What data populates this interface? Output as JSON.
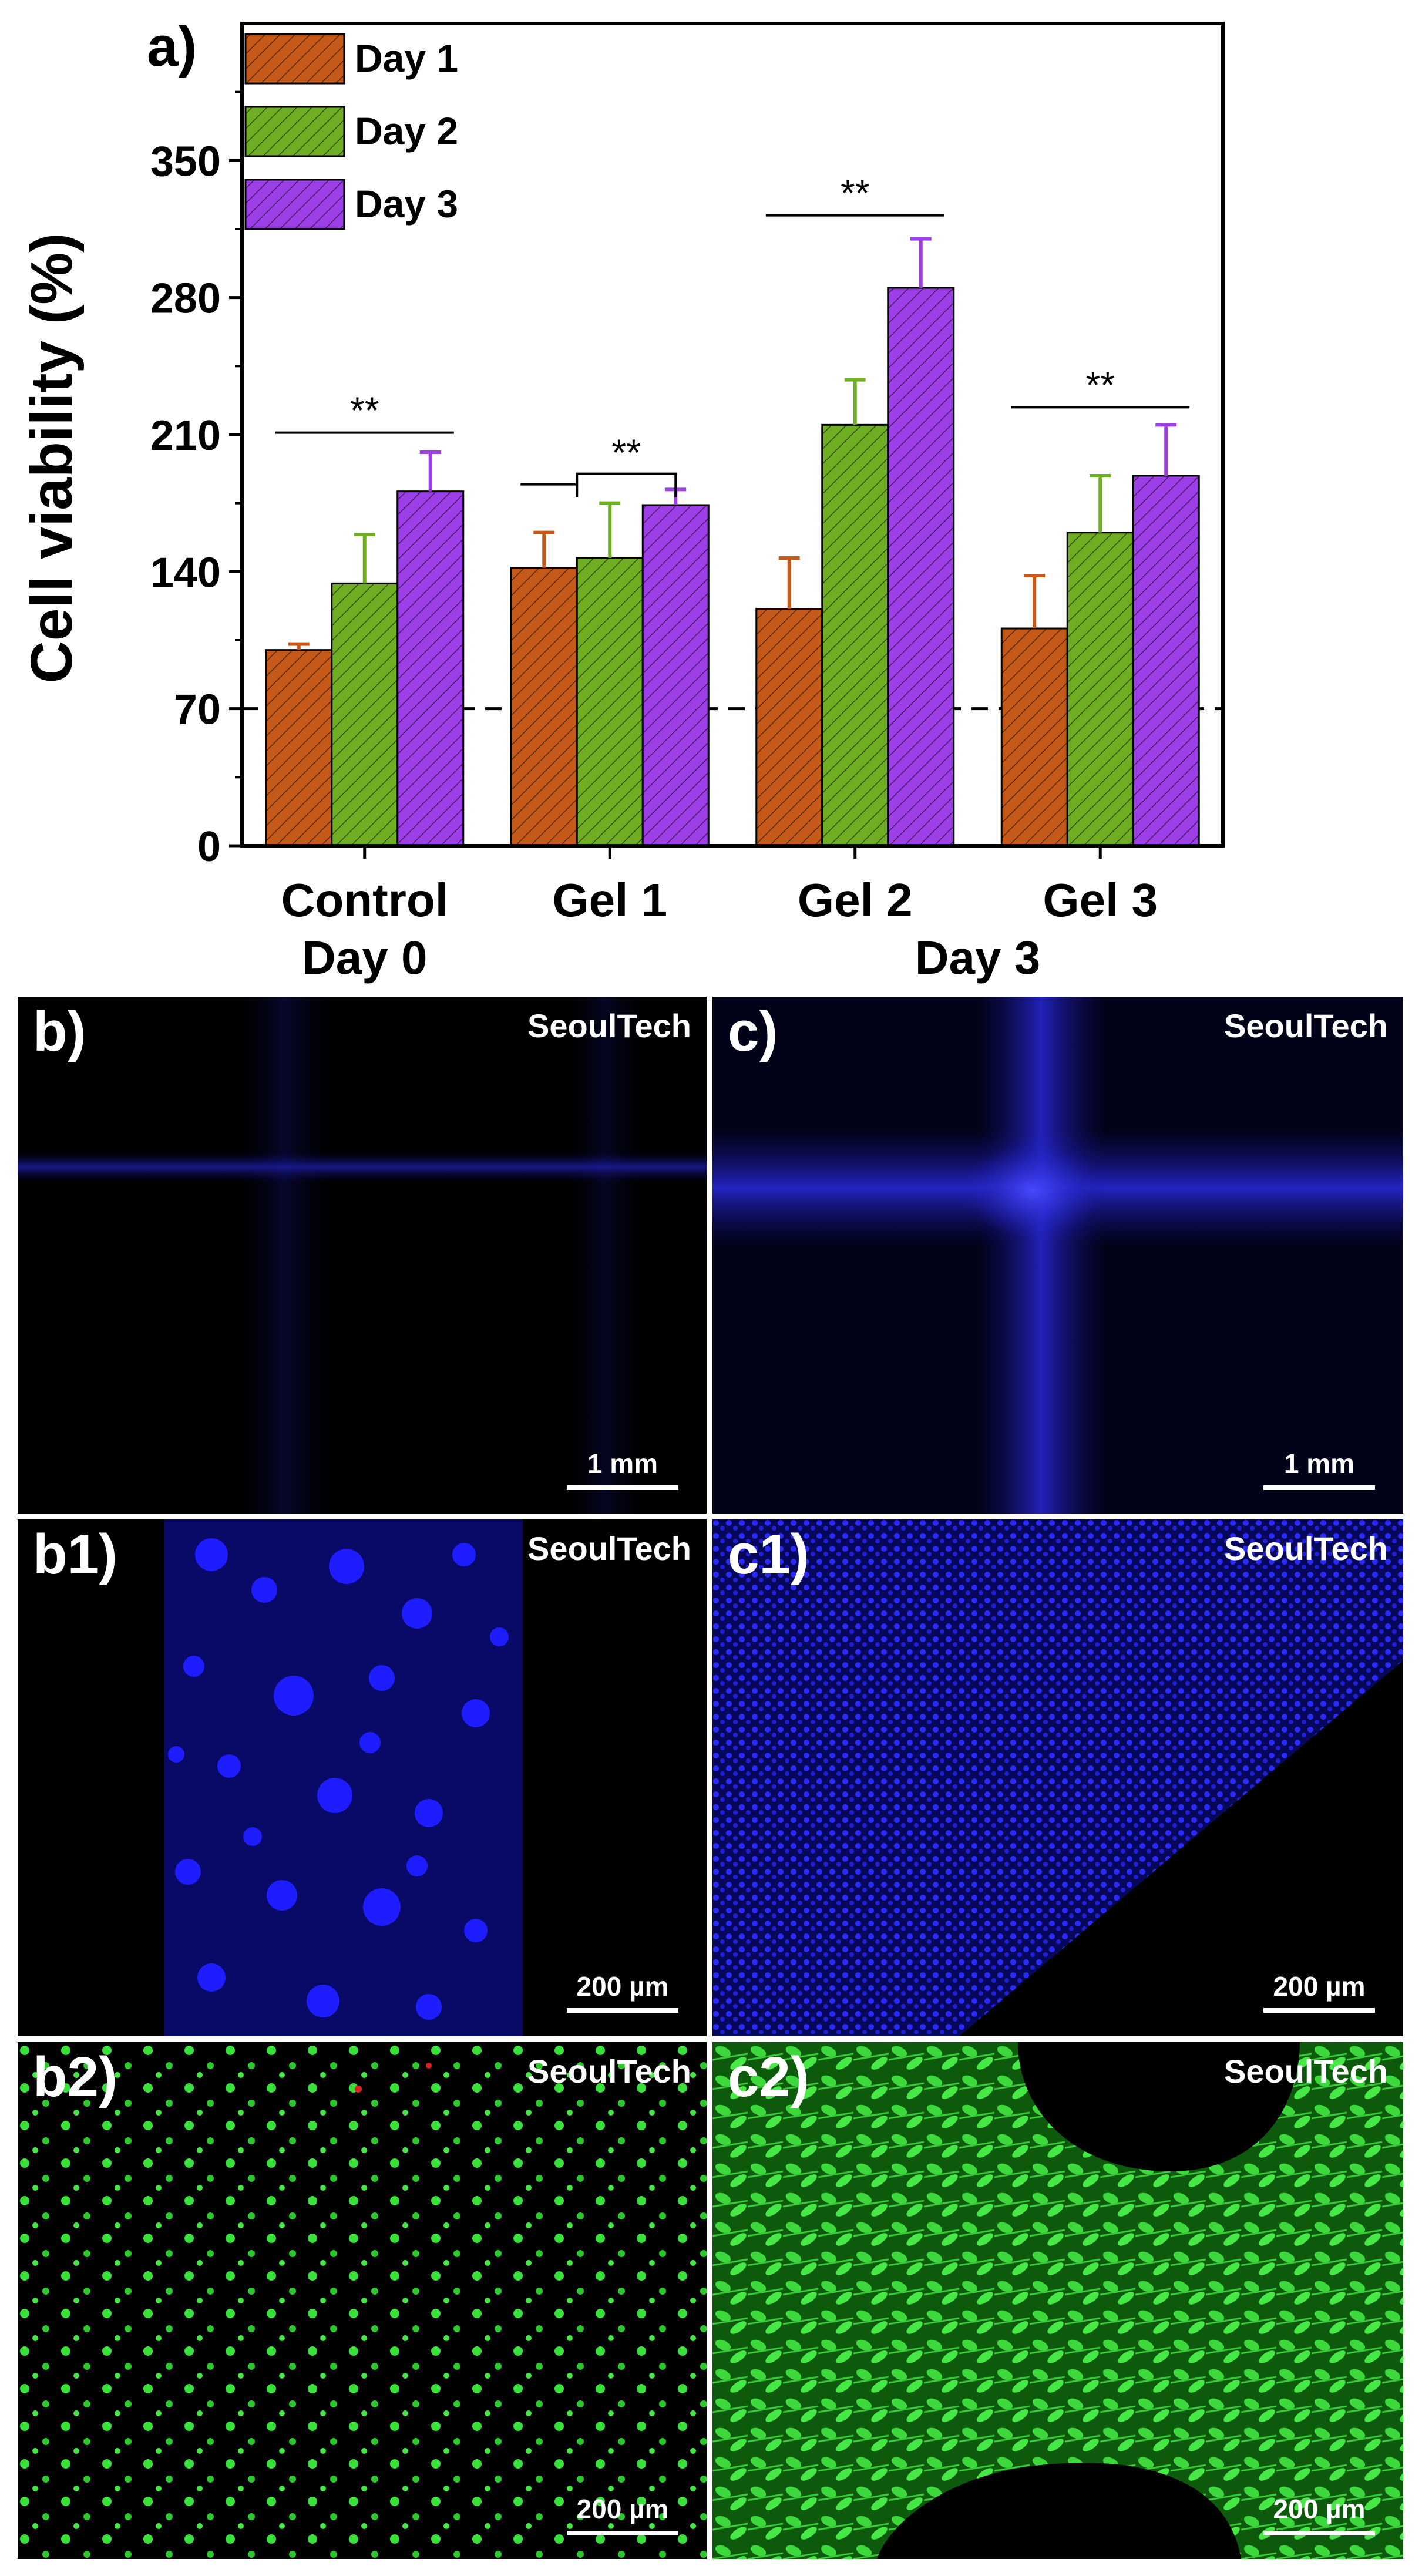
{
  "chart_data": {
    "type": "bar",
    "panel_label": "a)",
    "ylabel": "Cell viability (%)",
    "ylim": [
      0,
      420
    ],
    "yticks": [
      0,
      70,
      140,
      210,
      280,
      350
    ],
    "reference_line": 70,
    "categories": [
      "Control\nDay 0",
      "Gel 1",
      "Gel  2",
      "Gel 3"
    ],
    "group_sublabel": "Day 3",
    "series": [
      {
        "name": "Day 1",
        "color": "#c4591a",
        "values": [
          100,
          142,
          121,
          111
        ],
        "errors": [
          3,
          18,
          26,
          27
        ]
      },
      {
        "name": "Day 2",
        "color": "#6fae23",
        "values": [
          134,
          147,
          215,
          160
        ],
        "errors": [
          25,
          28,
          23,
          29
        ]
      },
      {
        "name": "Day 3",
        "color": "#9c3fe6",
        "values": [
          181,
          174,
          285,
          189
        ],
        "errors": [
          20,
          8,
          25,
          26
        ]
      }
    ],
    "significance": [
      {
        "group": 0,
        "label": "**",
        "y": 211,
        "span": [
          0,
          2
        ],
        "bracket": false
      },
      {
        "group": 1,
        "label": "**",
        "y": 190,
        "span": [
          0,
          2
        ],
        "bracket": true
      },
      {
        "group": 2,
        "label": "**",
        "y": 322,
        "span": [
          0,
          2
        ],
        "bracket": false
      },
      {
        "group": 3,
        "label": "**",
        "y": 224,
        "span": [
          0,
          2
        ],
        "bracket": false
      }
    ],
    "legend_position": "top-left"
  },
  "panels": [
    {
      "label": "b)",
      "watermark": "SeoulTech",
      "scalebar": "1 mm",
      "stain": "blue"
    },
    {
      "label": "c)",
      "watermark": "SeoulTech",
      "scalebar": "1 mm",
      "stain": "blue"
    },
    {
      "label": "b1)",
      "watermark": "SeoulTech",
      "scalebar": "200 µm",
      "stain": "blue"
    },
    {
      "label": "c1)",
      "watermark": "SeoulTech",
      "scalebar": "200 µm",
      "stain": "blue"
    },
    {
      "label": "b2)",
      "watermark": "SeoulTech",
      "scalebar": "200 µm",
      "stain": "green"
    },
    {
      "label": "c2)",
      "watermark": "SeoulTech",
      "scalebar": "200 µm",
      "stain": "green"
    }
  ]
}
